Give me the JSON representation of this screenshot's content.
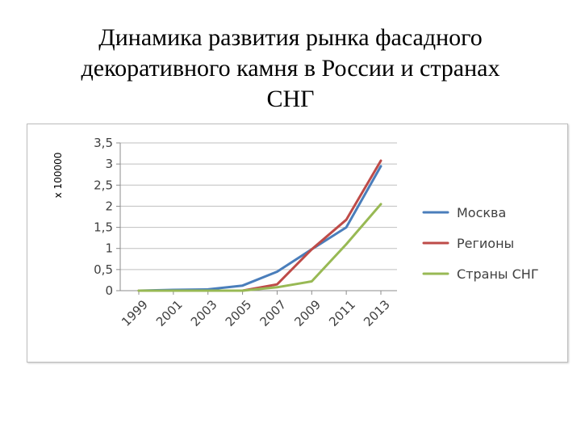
{
  "slide": {
    "title_lines": [
      "Динамика развития рынка фасадного",
      "декоративного камня в России и странах",
      "СНГ"
    ]
  },
  "chart_data": {
    "type": "line",
    "title": "",
    "xlabel": "",
    "ylabel": "x 100000",
    "ylim": [
      0,
      3.5
    ],
    "x": [
      1999,
      2001,
      2003,
      2005,
      2007,
      2009,
      2011,
      2013
    ],
    "x_tick_labels": [
      "1999",
      "2001",
      "2003",
      "2005",
      "2007",
      "2009",
      "2011",
      "2013"
    ],
    "y_ticks": [
      0,
      0.5,
      1,
      1.5,
      2,
      2.5,
      3,
      3.5
    ],
    "y_tick_labels": [
      "0",
      "0,5",
      "1",
      "1,5",
      "2",
      "2,5",
      "3",
      "3,5"
    ],
    "grid": true,
    "legend_position": "right",
    "series": [
      {
        "name": "Москва",
        "color": "#4a7ebb",
        "values": [
          0,
          0.02,
          0.03,
          0.12,
          0.45,
          0.98,
          1.5,
          2.95
        ]
      },
      {
        "name": "Регионы",
        "color": "#be4b48",
        "values": [
          0,
          0,
          0,
          0,
          0.15,
          0.98,
          1.68,
          3.08
        ]
      },
      {
        "name": "Страны СНГ",
        "color": "#98b954",
        "values": [
          0,
          0,
          0,
          0,
          0.08,
          0.22,
          1.1,
          2.05
        ]
      }
    ]
  }
}
